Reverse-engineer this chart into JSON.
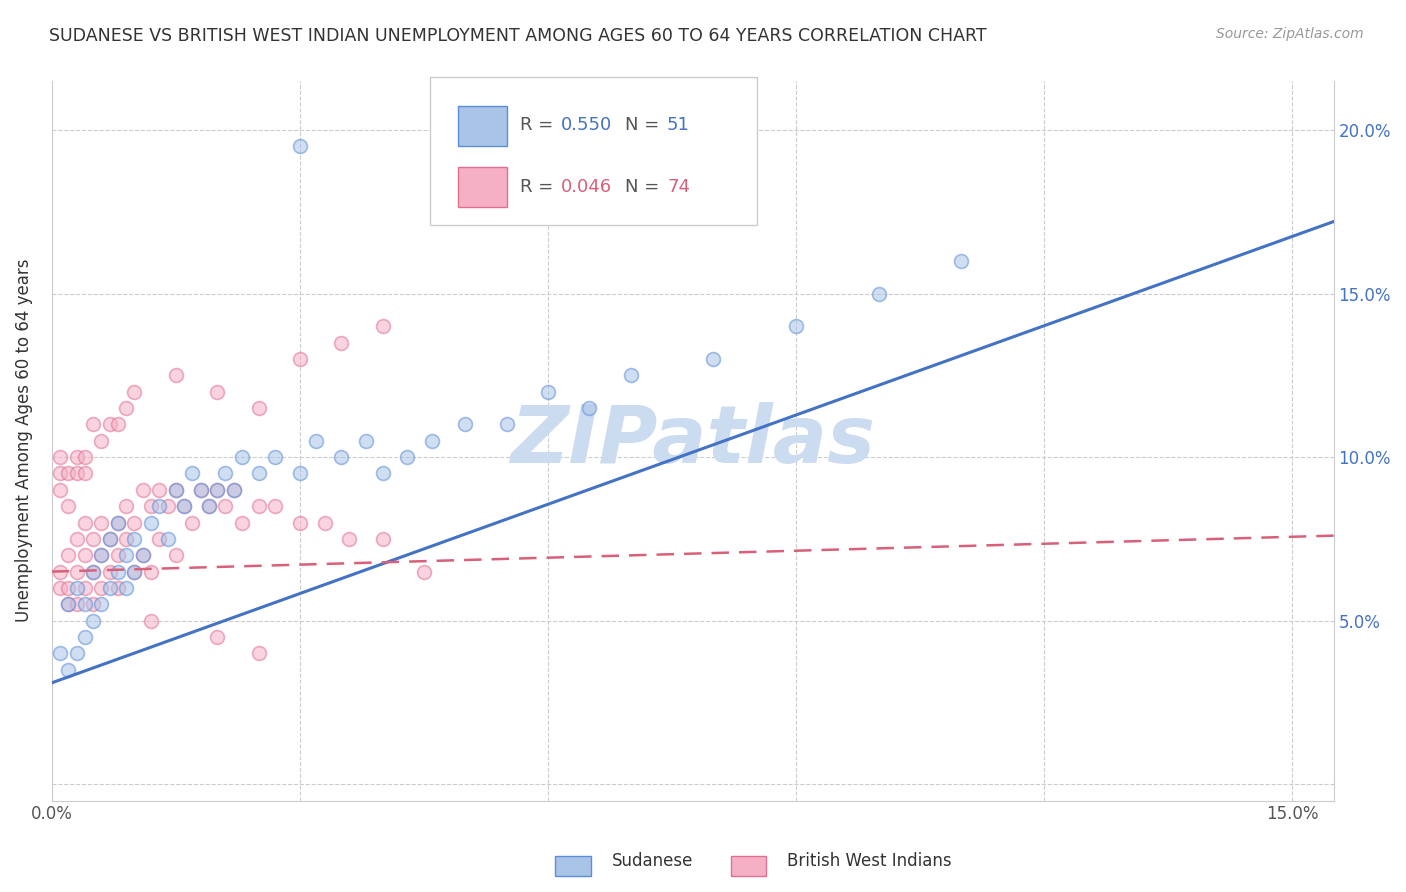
{
  "title": "SUDANESE VS BRITISH WEST INDIAN UNEMPLOYMENT AMONG AGES 60 TO 64 YEARS CORRELATION CHART",
  "source": "Source: ZipAtlas.com",
  "ylabel": "Unemployment Among Ages 60 to 64 years",
  "xlim": [
    0.0,
    0.155
  ],
  "ylim": [
    -0.005,
    0.215
  ],
  "sudanese_color": "#aac4e8",
  "sudanese_edge_color": "#5b8dd9",
  "bwi_color": "#f5b0c5",
  "bwi_edge_color": "#e07090",
  "sudanese_R": 0.55,
  "sudanese_N": 51,
  "bwi_R": 0.046,
  "bwi_N": 74,
  "sudanese_line_color": "#4472c4",
  "bwi_line_color": "#d9607a",
  "watermark": "ZIPatlas",
  "watermark_color": "#ccdcf0",
  "sudanese_line_x0": 0.0,
  "sudanese_line_y0": 0.031,
  "sudanese_line_x1": 0.155,
  "sudanese_line_y1": 0.172,
  "bwi_line_x0": 0.0,
  "bwi_line_y0": 0.065,
  "bwi_line_x1": 0.155,
  "bwi_line_y1": 0.076,
  "sudanese_x": [
    0.001,
    0.002,
    0.002,
    0.003,
    0.003,
    0.004,
    0.004,
    0.005,
    0.005,
    0.006,
    0.006,
    0.007,
    0.007,
    0.008,
    0.008,
    0.009,
    0.009,
    0.01,
    0.01,
    0.011,
    0.012,
    0.013,
    0.014,
    0.015,
    0.016,
    0.017,
    0.018,
    0.019,
    0.02,
    0.021,
    0.022,
    0.023,
    0.025,
    0.027,
    0.03,
    0.032,
    0.035,
    0.038,
    0.04,
    0.043,
    0.046,
    0.05,
    0.055,
    0.06,
    0.065,
    0.07,
    0.08,
    0.09,
    0.1,
    0.11,
    0.03
  ],
  "sudanese_y": [
    0.04,
    0.035,
    0.055,
    0.04,
    0.06,
    0.045,
    0.055,
    0.05,
    0.065,
    0.055,
    0.07,
    0.06,
    0.075,
    0.065,
    0.08,
    0.07,
    0.06,
    0.075,
    0.065,
    0.07,
    0.08,
    0.085,
    0.075,
    0.09,
    0.085,
    0.095,
    0.09,
    0.085,
    0.09,
    0.095,
    0.09,
    0.1,
    0.095,
    0.1,
    0.095,
    0.105,
    0.1,
    0.105,
    0.095,
    0.1,
    0.105,
    0.11,
    0.11,
    0.12,
    0.115,
    0.125,
    0.13,
    0.14,
    0.15,
    0.16,
    0.195
  ],
  "bwi_x": [
    0.001,
    0.001,
    0.002,
    0.002,
    0.002,
    0.003,
    0.003,
    0.003,
    0.004,
    0.004,
    0.004,
    0.005,
    0.005,
    0.005,
    0.006,
    0.006,
    0.006,
    0.007,
    0.007,
    0.008,
    0.008,
    0.008,
    0.009,
    0.009,
    0.01,
    0.01,
    0.011,
    0.011,
    0.012,
    0.012,
    0.013,
    0.013,
    0.014,
    0.015,
    0.015,
    0.016,
    0.017,
    0.018,
    0.019,
    0.02,
    0.021,
    0.022,
    0.023,
    0.025,
    0.027,
    0.03,
    0.033,
    0.036,
    0.04,
    0.045,
    0.001,
    0.001,
    0.001,
    0.002,
    0.002,
    0.003,
    0.003,
    0.004,
    0.004,
    0.005,
    0.006,
    0.007,
    0.008,
    0.009,
    0.01,
    0.015,
    0.02,
    0.025,
    0.03,
    0.035,
    0.04,
    0.012,
    0.02,
    0.025
  ],
  "bwi_y": [
    0.06,
    0.065,
    0.055,
    0.07,
    0.06,
    0.065,
    0.075,
    0.055,
    0.07,
    0.06,
    0.08,
    0.065,
    0.075,
    0.055,
    0.07,
    0.06,
    0.08,
    0.075,
    0.065,
    0.08,
    0.07,
    0.06,
    0.085,
    0.075,
    0.08,
    0.065,
    0.09,
    0.07,
    0.085,
    0.065,
    0.09,
    0.075,
    0.085,
    0.09,
    0.07,
    0.085,
    0.08,
    0.09,
    0.085,
    0.09,
    0.085,
    0.09,
    0.08,
    0.085,
    0.085,
    0.08,
    0.08,
    0.075,
    0.075,
    0.065,
    0.09,
    0.095,
    0.1,
    0.095,
    0.085,
    0.095,
    0.1,
    0.095,
    0.1,
    0.11,
    0.105,
    0.11,
    0.11,
    0.115,
    0.12,
    0.125,
    0.12,
    0.115,
    0.13,
    0.135,
    0.14,
    0.05,
    0.045,
    0.04
  ],
  "marker_size": 100,
  "marker_alpha": 0.55,
  "grid_color": "#cccccc"
}
